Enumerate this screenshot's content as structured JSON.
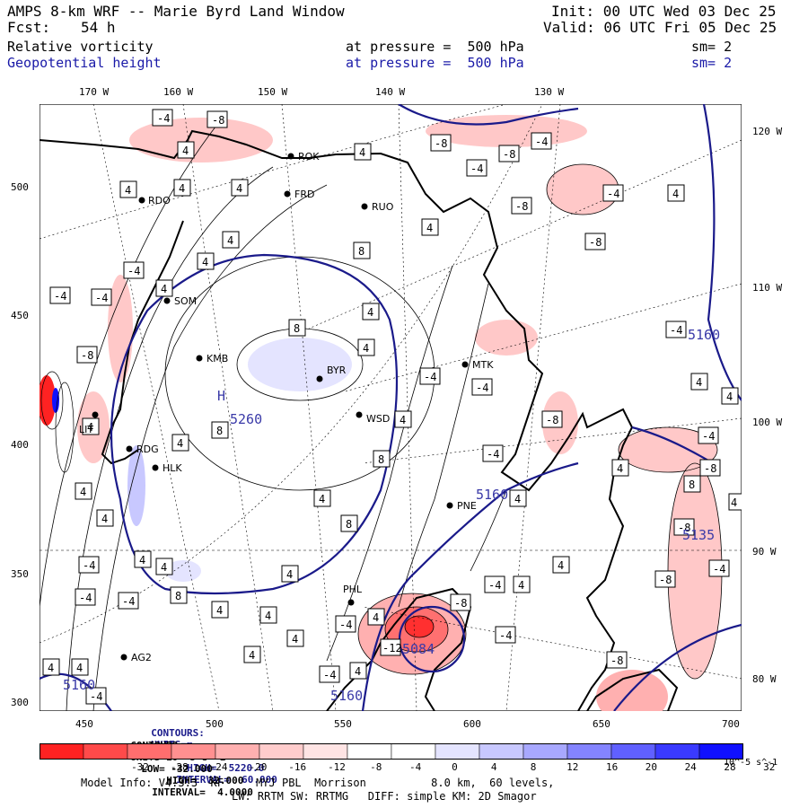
{
  "header": {
    "title": "AMPS 8-km WRF -- Marie Byrd Land Window",
    "init": "Init: 00 UTC Wed 03 Dec 25",
    "fcst_label": "Fcst:",
    "fcst_value": "54 h",
    "valid": "Valid: 06 UTC Fri 05 Dec 25",
    "field1_name": "Relative vorticity",
    "field1_pressure": "at pressure =  500 hPa",
    "field1_sm": "sm= 2",
    "field2_name": "Geopotential height",
    "field2_pressure": "at pressure =  500 hPa",
    "field2_sm": "sm= 2"
  },
  "axes": {
    "top_longitudes": [
      "170 W",
      "160 W",
      "150 W",
      "140 W",
      "130 W"
    ],
    "right_longitudes": [
      "120 W",
      "110 W",
      "100 W",
      "90 W",
      "80 W"
    ],
    "left_ticks": [
      "500",
      "450",
      "400",
      "350",
      "300"
    ],
    "bottom_ticks": [
      "450",
      "500",
      "550",
      "600",
      "650",
      "700"
    ]
  },
  "stations": [
    {
      "code": "RDO"
    },
    {
      "code": "FRD"
    },
    {
      "code": "RUO"
    },
    {
      "code": "SOM"
    },
    {
      "code": "KMB"
    },
    {
      "code": "BYR"
    },
    {
      "code": "WSD"
    },
    {
      "code": "MTK"
    },
    {
      "code": "RDG"
    },
    {
      "code": "HLK"
    },
    {
      "code": "LIT"
    },
    {
      "code": "PNE"
    },
    {
      "code": "PHL"
    },
    {
      "code": "AG2"
    },
    {
      "code": "ROK"
    }
  ],
  "height_labels": [
    "5260",
    "5160",
    "5160",
    "5160",
    "5160",
    "5135",
    "5084"
  ],
  "high_marker": "H",
  "contour_line1": {
    "label": "CONTOURS:",
    "units": "UNITS=m",
    "low": "LOW=  5150.0",
    "high": "HIGH=  5220.0",
    "interval": "INTERVAL=  60.000"
  },
  "contour_line2": {
    "label": "CONTOURS:",
    "units": "UNITS=10^-5 s^-1",
    "low": "LOW= -32.000",
    "high": "HIGH=  32.000",
    "interval": "INTERVAL=  4.0000"
  },
  "colorbar": {
    "ticks": [
      "-32",
      "-28",
      "-24",
      "-20",
      "-16",
      "-12",
      "-8",
      "-4",
      "0",
      "4",
      "8",
      "12",
      "16",
      "20",
      "24",
      "28",
      "32"
    ],
    "units": "10^-5 s^-1",
    "colors": [
      "#ff2222",
      "#ff4a4a",
      "#ff6e6e",
      "#ff9090",
      "#ffb0b0",
      "#ffcccc",
      "#ffe4e4",
      "#ffffff",
      "#ffffff",
      "#e4e4ff",
      "#c8c8ff",
      "#a8a8ff",
      "#8484ff",
      "#6060ff",
      "#3a3aff",
      "#1010ff"
    ]
  },
  "footer": {
    "line1": "Model Info: V4.3.3  KF     MYJ PBL  Morrison          8.0 km,  60 levels,",
    "line2": "LW: RRTM SW: RRTMG   DIFF: simple KM: 2D Smagor"
  },
  "colors": {
    "height_contour": "#1a1a8a",
    "vort_contour": "#000000",
    "positive_fill": "#ffb0b0",
    "negative_fill": "#c8c8ff"
  }
}
